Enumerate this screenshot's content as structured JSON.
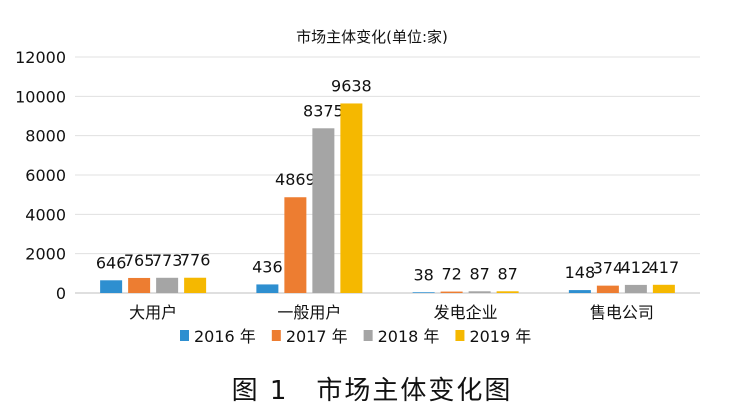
{
  "chart_data": {
    "type": "bar",
    "title": "市场主体变化(单位:家)",
    "categories": [
      "大用户",
      "一般用户",
      "发电企业",
      "售电公司"
    ],
    "series": [
      {
        "name": "2016 年",
        "color": "#2e8fd0",
        "values": [
          646,
          436,
          38,
          148
        ]
      },
      {
        "name": "2017 年",
        "color": "#ed7d31",
        "values": [
          765,
          4869,
          72,
          374
        ]
      },
      {
        "name": "2018 年",
        "color": "#a5a5a5",
        "values": [
          773,
          8375,
          87,
          412
        ]
      },
      {
        "name": "2019 年",
        "color": "#f5b800",
        "values": [
          776,
          9638,
          87,
          417
        ]
      }
    ],
    "ylim": [
      0,
      12000
    ],
    "yticks": [
      0,
      2000,
      4000,
      6000,
      8000,
      10000,
      12000
    ],
    "grid": true,
    "legend": "bottom",
    "data_labels": true
  },
  "caption": "图 1　市场主体变化图"
}
